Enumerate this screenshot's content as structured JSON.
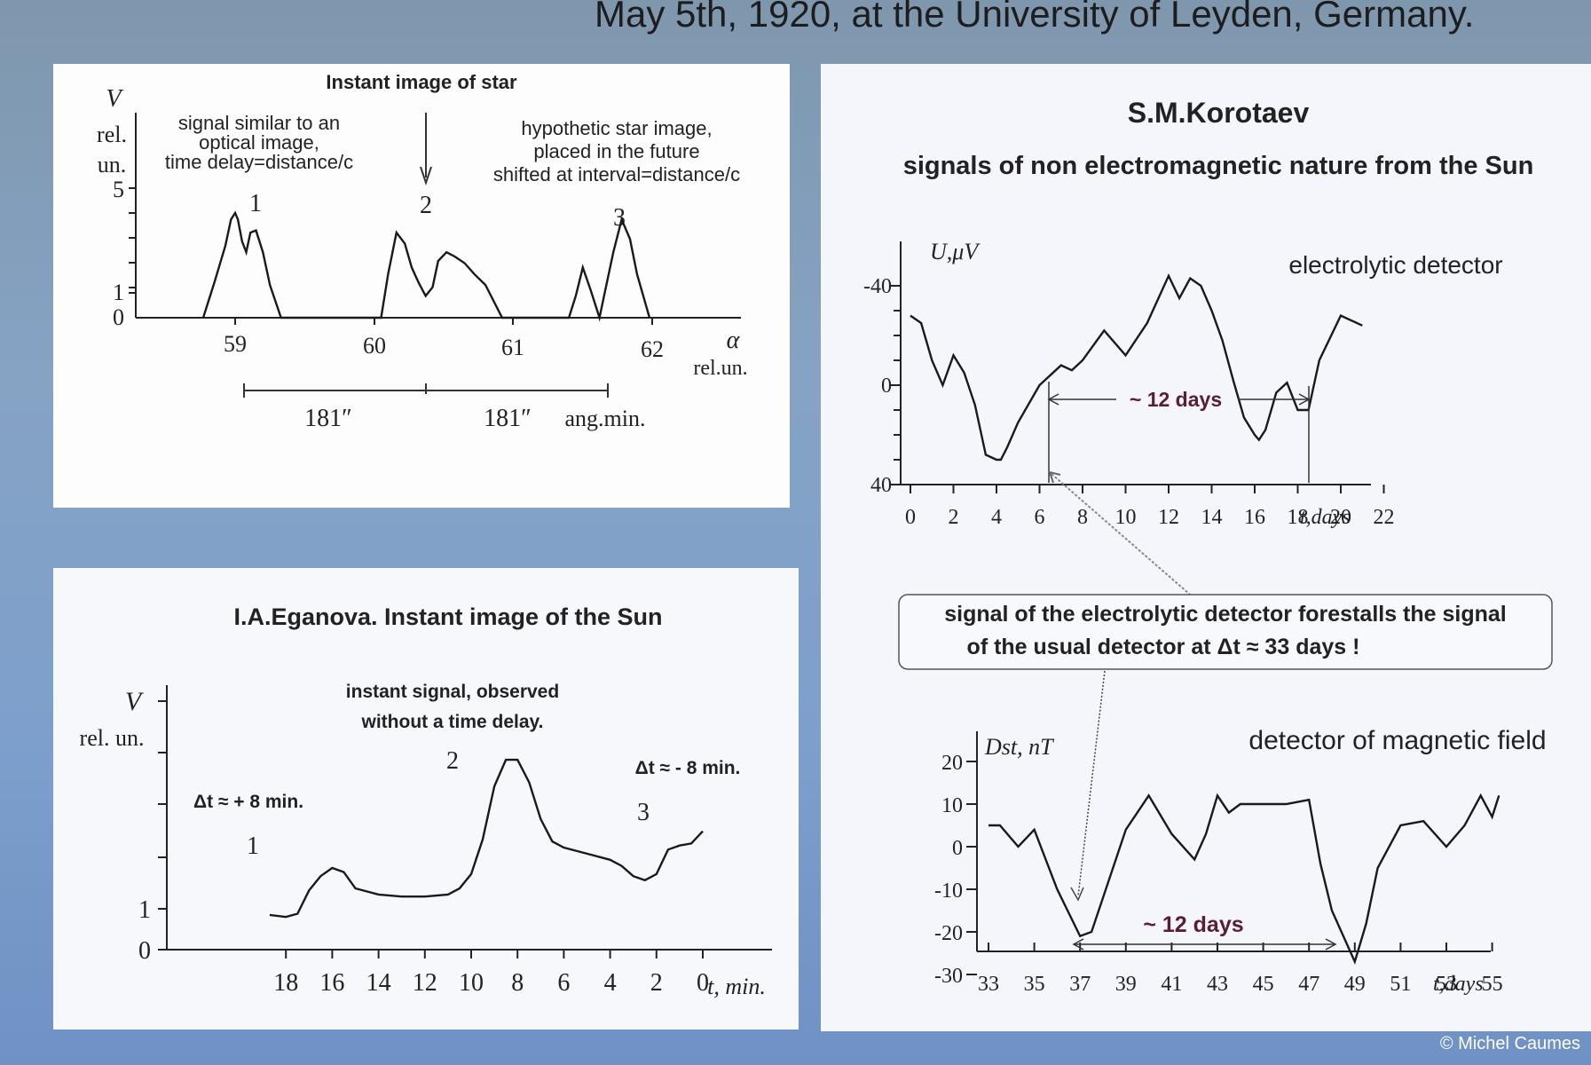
{
  "slide": {
    "title": "May 5th, 1920, at the University of Leyden, Germany.",
    "credit": "© Michel Caumes"
  },
  "panel_star": {
    "title": "Instant image of star",
    "y_label_1": "V",
    "y_label_2": "rel.",
    "y_label_3": "un.",
    "note_left": [
      "signal similar to an",
      "optical image,",
      "time delay=distance/c"
    ],
    "note_right": [
      "hypothetic star image,",
      "placed in the future",
      "shifted at interval=distance/c"
    ],
    "peak_labels": [
      "1",
      "2",
      "3"
    ],
    "x_var": "α",
    "x_unit": "rel.un.",
    "span_1": "181″",
    "span_2": "181″",
    "span_unit": "ang.min."
  },
  "panel_sun": {
    "title": "I.A.Eganova. Instant image of the Sun",
    "y_label_1": "V",
    "y_label_2": "rel. un.",
    "note_center": [
      "instant signal, observed",
      "without a time delay."
    ],
    "note_left": "Δt ≈ + 8 min.",
    "note_right": "Δt ≈ - 8 min.",
    "peak_labels": [
      "1",
      "2",
      "3"
    ],
    "x_unit": "t, min."
  },
  "panel_korotaev": {
    "author": "S.M.Korotaev",
    "subtitle": "signals of non electromagnetic nature from the Sun",
    "top_y_label": "U,μV",
    "top_series": "electrolytic detector",
    "top_interval": "~ 12 days",
    "top_x_unit": "t,days",
    "callout": [
      "signal of the electrolytic detector forestalls the signal",
      "of the usual detector at Δt ≈ 33 days !"
    ],
    "bottom_y_label": "Dst, nT",
    "bottom_series": "detector of magnetic field",
    "bottom_interval": "~ 12 days",
    "bottom_x_unit": "t,days"
  },
  "chart_data": [
    {
      "type": "line",
      "title": "Instant image of star",
      "xlabel": "α rel.un.",
      "ylabel": "V rel. un.",
      "x_ticks": [
        "59",
        "60",
        "61",
        "62"
      ],
      "y_ticks": [
        "0",
        "1",
        "5"
      ],
      "series": [
        {
          "x": [
            58.77,
            58.85,
            58.93,
            58.97,
            59.0,
            59.02,
            59.05,
            59.08,
            59.11,
            59.15,
            59.2,
            59.25,
            59.33,
            60.05,
            60.1,
            60.16,
            60.22,
            60.27,
            60.32,
            60.37,
            60.42,
            60.46,
            60.52,
            60.58,
            60.65,
            60.72,
            60.8,
            60.92,
            61.4,
            61.45,
            61.5,
            61.56,
            61.62,
            61.66,
            61.72,
            61.78,
            61.84,
            61.89,
            61.98
          ],
          "y": [
            0,
            1.6,
            3.3,
            4.5,
            4.8,
            4.5,
            3.5,
            3.0,
            3.9,
            4.0,
            3.0,
            1.5,
            0,
            0,
            2.0,
            3.9,
            3.4,
            2.3,
            1.6,
            1.0,
            1.4,
            2.6,
            3.0,
            2.8,
            2.5,
            2.0,
            1.5,
            0,
            0,
            1.0,
            2.3,
            1.2,
            0,
            1.2,
            3.0,
            4.5,
            3.6,
            2.0,
            0
          ]
        }
      ]
    },
    {
      "type": "line",
      "title": "I.A.Eganova. Instant image of the Sun",
      "xlabel": "t, min.",
      "ylabel": "V rel. un.",
      "x_ticks": [
        "18",
        "16",
        "14",
        "12",
        "10",
        "8",
        "6",
        "4",
        "2",
        "0"
      ],
      "y_ticks": [
        "0",
        "1"
      ],
      "series": [
        {
          "x": [
            18.7,
            18.0,
            17.5,
            17.0,
            16.5,
            16.0,
            15.5,
            15.0,
            14.0,
            13.0,
            12.0,
            11.0,
            10.5,
            10.0,
            9.5,
            9.0,
            8.5,
            8.0,
            7.5,
            7.0,
            6.5,
            6.0,
            5.0,
            4.0,
            3.5,
            3.0,
            2.5,
            2.0,
            1.5,
            1.0,
            0.5,
            0
          ],
          "y": [
            0.85,
            0.8,
            0.88,
            1.45,
            1.8,
            2.0,
            1.9,
            1.5,
            1.35,
            1.3,
            1.3,
            1.35,
            1.5,
            1.85,
            2.7,
            4.0,
            4.65,
            4.65,
            4.1,
            3.2,
            2.65,
            2.5,
            2.35,
            2.2,
            2.05,
            1.8,
            1.7,
            1.85,
            2.45,
            2.55,
            2.6,
            2.9
          ]
        }
      ]
    },
    {
      "type": "line",
      "title": "electrolytic detector",
      "xlabel": "t,days",
      "ylabel": "U,μV",
      "x_ticks": [
        "0",
        "2",
        "4",
        "6",
        "8",
        "10",
        "12",
        "14",
        "16",
        "18",
        "20",
        "22"
      ],
      "y_ticks": [
        "-40",
        "0",
        "40"
      ],
      "y_inverted": true,
      "series": [
        {
          "name": "electrolytic detector",
          "x": [
            0,
            0.5,
            1.0,
            1.5,
            2.0,
            2.5,
            3.0,
            3.5,
            4.0,
            4.2,
            4.5,
            5.0,
            6.0,
            7.0,
            7.5,
            8.0,
            9.0,
            10.0,
            11.0,
            12.0,
            12.5,
            13.0,
            13.5,
            14.0,
            14.5,
            15.0,
            15.5,
            16.0,
            16.2,
            16.5,
            17.0,
            17.5,
            18.0,
            18.5,
            19.0,
            20.0,
            21.0
          ],
          "y": [
            -28,
            -25,
            -10,
            0,
            -12,
            -5,
            8,
            28,
            30,
            30,
            25,
            15,
            0,
            -8,
            -6,
            -10,
            -22,
            -12,
            -25,
            -44,
            -35,
            -43,
            -40,
            -30,
            -18,
            -2,
            13,
            20,
            22,
            18,
            3,
            -1,
            10,
            10,
            -10,
            -28,
            -24
          ]
        }
      ]
    },
    {
      "type": "line",
      "title": "detector of magnetic field",
      "xlabel": "t,days",
      "ylabel": "Dst, nT",
      "x_ticks": [
        "33",
        "35",
        "37",
        "39",
        "41",
        "43",
        "45",
        "47",
        "49",
        "51",
        "53",
        "55"
      ],
      "y_ticks": [
        "20",
        "10",
        "0",
        "-10",
        "-20",
        "-30"
      ],
      "series": [
        {
          "name": "detector of magnetic field",
          "x": [
            33.0,
            33.5,
            34.3,
            35.0,
            36.0,
            37.0,
            37.5,
            38.0,
            39.0,
            40.0,
            41.0,
            42.0,
            42.5,
            43.0,
            43.5,
            44.0,
            45.0,
            46.0,
            47.0,
            47.5,
            48.0,
            49.0,
            49.5,
            50.0,
            51.0,
            52.0,
            53.0,
            53.8,
            54.5,
            55.0,
            55.3
          ],
          "y": [
            5,
            5,
            0,
            4,
            -10,
            -21,
            -20,
            -12,
            4,
            12,
            3,
            -3,
            3,
            12,
            8,
            10,
            10,
            10,
            11,
            -4,
            -15,
            -27,
            -18,
            -5,
            5,
            6,
            0,
            5,
            12,
            7,
            12
          ]
        }
      ]
    }
  ]
}
